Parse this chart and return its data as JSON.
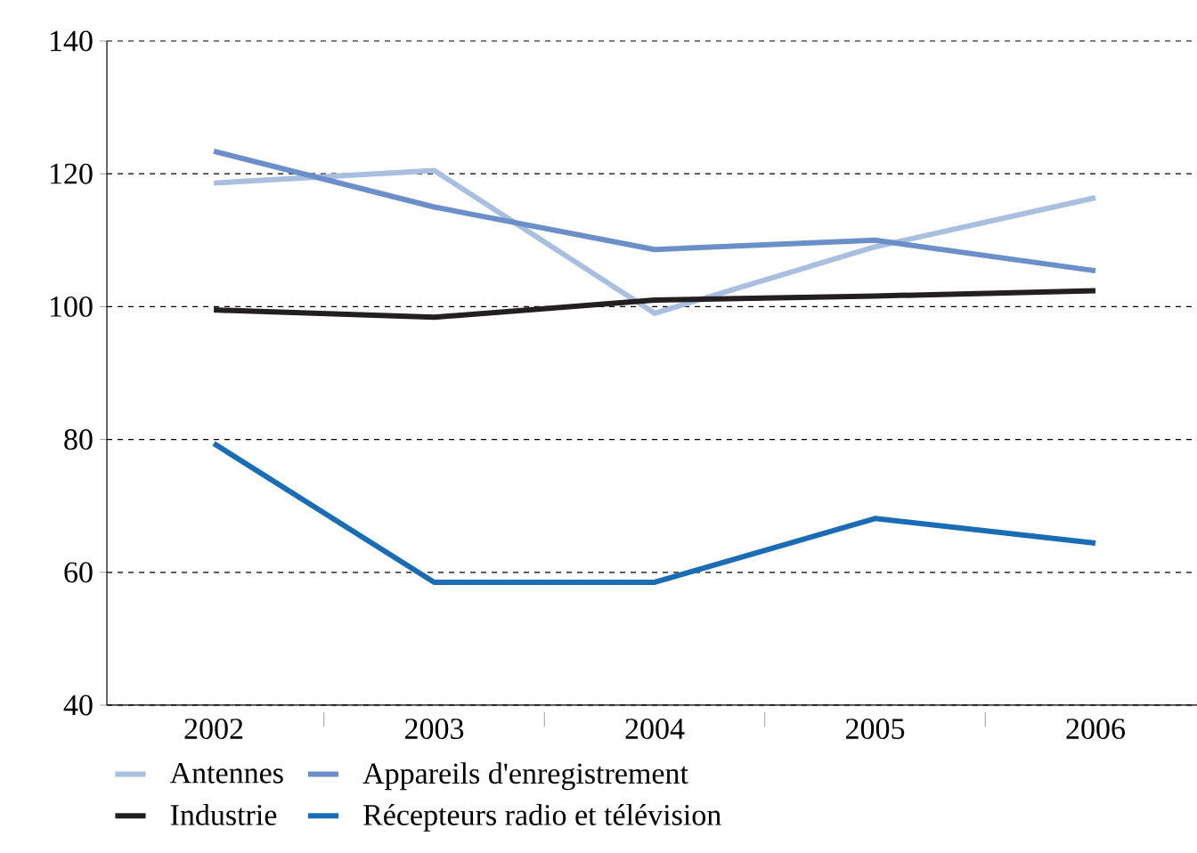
{
  "chart_data": {
    "type": "line",
    "categories": [
      "2002",
      "2003",
      "2004",
      "2005",
      "2006"
    ],
    "series": [
      {
        "name": "Antennes",
        "color": "#a9bfe0",
        "values": [
          118.6,
          120.5,
          99,
          109,
          116.4
        ]
      },
      {
        "name": "Appareils d'enregistrement",
        "color": "#6a8fc9",
        "values": [
          123.4,
          115,
          108.6,
          110,
          105.4
        ]
      },
      {
        "name": "Industrie",
        "color": "#231f20",
        "values": [
          99.5,
          98.4,
          101,
          101.6,
          102.4
        ]
      },
      {
        "name": "Récepteurs radio et télévision",
        "color": "#1a6db5",
        "values": [
          79.4,
          58.5,
          58.5,
          68.1,
          64.4
        ]
      }
    ],
    "ylim": [
      40,
      140
    ],
    "yticks": [
      40,
      60,
      80,
      100,
      120,
      140
    ],
    "grid": "y",
    "legend": "bottom",
    "marker": "none",
    "line_style": "solid"
  }
}
